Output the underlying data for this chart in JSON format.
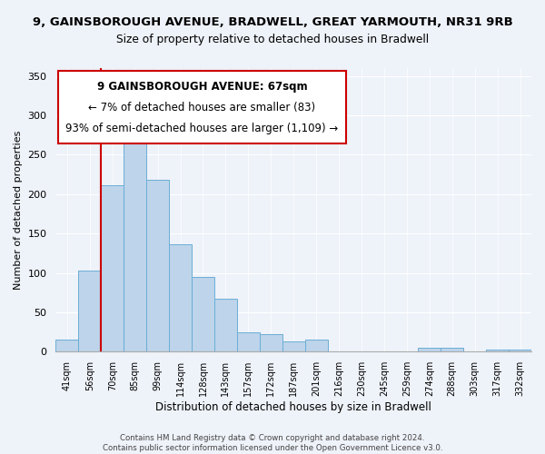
{
  "title_line1": "9, GAINSBOROUGH AVENUE, BRADWELL, GREAT YARMOUTH, NR31 9RB",
  "title_line2": "Size of property relative to detached houses in Bradwell",
  "xlabel": "Distribution of detached houses by size in Bradwell",
  "ylabel": "Number of detached properties",
  "bar_labels": [
    "41sqm",
    "56sqm",
    "70sqm",
    "85sqm",
    "99sqm",
    "114sqm",
    "128sqm",
    "143sqm",
    "157sqm",
    "172sqm",
    "187sqm",
    "201sqm",
    "216sqm",
    "230sqm",
    "245sqm",
    "259sqm",
    "274sqm",
    "288sqm",
    "303sqm",
    "317sqm",
    "332sqm"
  ],
  "bar_values": [
    15,
    103,
    211,
    279,
    218,
    136,
    95,
    67,
    25,
    22,
    13,
    15,
    0,
    0,
    0,
    0,
    5,
    5,
    0,
    3,
    3
  ],
  "bar_color": "#bdd4ea",
  "bar_edge_color": "#6baed6",
  "ylim": [
    0,
    360
  ],
  "yticks": [
    0,
    50,
    100,
    150,
    200,
    250,
    300,
    350
  ],
  "vline_color": "#cc0000",
  "annotation_line1": "9 GAINSBOROUGH AVENUE: 67sqm",
  "annotation_line2": "← 7% of detached houses are smaller (83)",
  "annotation_line3": "93% of semi-detached houses are larger (1,109) →",
  "footer_line1": "Contains HM Land Registry data © Crown copyright and database right 2024.",
  "footer_line2": "Contains public sector information licensed under the Open Government Licence v3.0.",
  "bg_color": "#eef2f9",
  "plot_bg_color": "#eef2f9",
  "grid_color": "#ffffff"
}
